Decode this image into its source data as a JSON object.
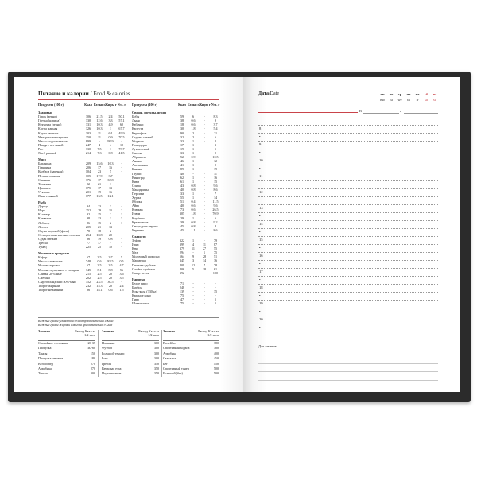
{
  "left_page": {
    "title": "Питание и калории",
    "title_en": "/ Food & calories",
    "columns": [
      "Продукты (100 г)",
      "Ккал",
      "Белки г",
      "Жиры г",
      "Угл. г"
    ],
    "left_sections": [
      {
        "name": "Злаковые",
        "rows": [
          [
            "Горох (зерно)",
            "306",
            "21.5",
            "2.4",
            "50.1"
          ],
          [
            "Гречка (ядрица)",
            "330",
            "12.6",
            "3.3",
            "57.1"
          ],
          [
            "Кукуруза (зерно)",
            "331",
            "10.3",
            "4.9",
            "60"
          ],
          [
            "Крупа манная",
            "326",
            "10.3",
            "1",
            "67.7"
          ],
          [
            "Крупа овсяная",
            "303",
            "11",
            "6.1",
            "49.9"
          ],
          [
            "Макаронные изделия",
            "350",
            "11",
            "0.9",
            "70.5"
          ],
          [
            "Масло подсолнечное",
            "899",
            "-",
            "99.9",
            "-"
          ],
          [
            "Пицца с ветчиной",
            "247",
            "4",
            "4",
            "12"
          ],
          [
            "Рис",
            "330",
            "7.5",
            "1",
            "73.7"
          ],
          [
            "Хлеб ржаной",
            "214",
            "7.3",
            "0.8",
            "41.5"
          ]
        ]
      },
      {
        "name": "Мясо",
        "rows": [
          [
            "Баранина",
            "209",
            "15.6",
            "16.3",
            "-"
          ],
          [
            "Говядина",
            "206",
            "17",
            "16",
            "-"
          ],
          [
            "Колбаса (вареная)",
            "104",
            "23",
            "5",
            "-"
          ],
          [
            "Печень говяжья",
            "105",
            "17.9",
            "3.7",
            "-"
          ],
          [
            "Свинина",
            "376",
            "17",
            "33.8",
            "-"
          ],
          [
            "Телятина",
            "92",
            "21",
            "1",
            "-"
          ],
          [
            "Цыплята",
            "175",
            "17",
            "13",
            "-"
          ],
          [
            "Утятина",
            "201",
            "19",
            "16",
            "-"
          ],
          [
            "Язык говяжий",
            "177",
            "13.5",
            "12.1",
            "-"
          ]
        ]
      },
      {
        "name": "Рыба",
        "rows": [
          [
            "Дорадо",
            "94",
            "23",
            "3",
            "-"
          ],
          [
            "Икра",
            "252",
            "29",
            "15",
            "2"
          ],
          [
            "Кальмар",
            "92",
            "15",
            "2",
            "1"
          ],
          [
            "Креветки",
            "98",
            "13",
            "1",
            "3"
          ],
          [
            "Лобстер",
            "86",
            "15",
            "2",
            "1"
          ],
          [
            "Лосось",
            "205",
            "21",
            "13",
            "-"
          ],
          [
            "Окунь морской (филе)",
            "78",
            "18",
            "2",
            "-"
          ],
          [
            "Сельдь атлантическая соленая",
            "254",
            "18.8",
            "20",
            "-"
          ],
          [
            "Судак свежий",
            "86",
            "19",
            "0.8",
            "-"
          ],
          [
            "Треска",
            "77",
            "17",
            "-",
            "-"
          ],
          [
            "Тунец",
            "225",
            "25",
            "10",
            "-"
          ]
        ]
      },
      {
        "name": "Молочные продукты",
        "rows": [
          [
            "Кефир",
            "67",
            "3.5",
            "3.7",
            "5"
          ],
          [
            "Масло сливочное",
            "748",
            "0.6",
            "82.5",
            "0.5"
          ],
          [
            "Молоко коровье",
            "67",
            "3.5",
            "3.5",
            "4.7"
          ],
          [
            "Молоко сгущенное с сахаром",
            "345",
            "8.1",
            "8.8",
            "56"
          ],
          [
            "Сливки 20%-ные",
            "215",
            "2.5",
            "20",
            "3.6"
          ],
          [
            "Сметана",
            "202",
            "2.5",
            "20",
            "3.5"
          ],
          [
            "Сыр голландский 50%-ный",
            "352",
            "23.5",
            "30.5",
            "-"
          ],
          [
            "Творог жирный",
            "232",
            "15.3",
            "20",
            "2.4"
          ],
          [
            "Творог нежирный",
            "86",
            "18.1",
            "0.6",
            "1.5"
          ]
        ]
      }
    ],
    "right_sections": [
      {
        "name": "Овощи, фрукты, ягоды",
        "rows": [
          [
            "Бобы",
            "59",
            "6",
            "-",
            "8.3"
          ],
          [
            "Дыня",
            "38",
            "0.6",
            "-",
            "9"
          ],
          [
            "Кабачки",
            "18",
            "0.6",
            "-",
            "3.7"
          ],
          [
            "Капуста",
            "30",
            "1.8",
            "-",
            "5.4"
          ],
          [
            "Картофель",
            "90",
            "2",
            "-",
            "21"
          ],
          [
            "Огурец свежий",
            "32",
            "2",
            "-",
            "6"
          ],
          [
            "Морковь",
            "33",
            "1",
            "-",
            "2"
          ],
          [
            "Помидоры",
            "17",
            "1",
            "-",
            "3"
          ],
          [
            "Лук зеленый",
            "19",
            "1",
            "-",
            "1"
          ],
          [
            "Свекла",
            "33",
            "1",
            "-",
            "9"
          ],
          [
            "Абрикосы",
            "52",
            "0.9",
            "-",
            "10.5"
          ],
          [
            "Ананас",
            "46",
            "1",
            "-",
            "12"
          ],
          [
            "Апельсины",
            "41",
            "1",
            "-",
            "9"
          ],
          [
            "Бананы",
            "89",
            "1",
            "-",
            "19"
          ],
          [
            "Груши",
            "40",
            "-",
            "-",
            "11"
          ],
          [
            "Виноград",
            "62",
            "1",
            "-",
            "16"
          ],
          [
            "Киви",
            "61",
            "1",
            "-",
            "15"
          ],
          [
            "Слива",
            "43",
            "0.8",
            "-",
            "9.6"
          ],
          [
            "Мандарины",
            "40",
            "0.8",
            "-",
            "8.6"
          ],
          [
            "Персики",
            "33",
            "1",
            "-",
            "7"
          ],
          [
            "Хурма",
            "55",
            "1",
            "-",
            "14"
          ],
          [
            "Яблоки",
            "51",
            "0.4",
            "-",
            "11.5"
          ],
          [
            "Айва",
            "40",
            "0.6",
            "-",
            "9.6"
          ],
          [
            "Клюква",
            "73",
            "0.6",
            "-",
            "26.5"
          ],
          [
            "Изюм",
            "305",
            "1.8",
            "-",
            "70.9"
          ],
          [
            "Клубника",
            "29",
            "1",
            "-",
            "6"
          ],
          [
            "Крыжовник",
            "39",
            "0.8",
            "-",
            "9.2"
          ],
          [
            "Смородина черная",
            "45",
            "0.8",
            "-",
            "8"
          ],
          [
            "Черника",
            "45",
            "1.1",
            "-",
            "8.6"
          ]
        ]
      },
      {
        "name": "Сладости",
        "rows": [
          [
            "Зефир",
            "322",
            "1",
            "-",
            "79"
          ],
          [
            "Ирис",
            "399",
            "4",
            "11",
            "87"
          ],
          [
            "Кекс",
            "379",
            "11",
            "27",
            "55"
          ],
          [
            "Мед",
            "294",
            "-",
            "1",
            "75"
          ],
          [
            "Молочный шоколад",
            "564",
            "9",
            "28",
            "51"
          ],
          [
            "Мармелад",
            "345",
            "3",
            "14",
            "36"
          ],
          [
            "Печенье сдобное",
            "409",
            "12",
            "7",
            "78"
          ],
          [
            "Слойки сдобные",
            "406",
            "5",
            "18",
            "61"
          ],
          [
            "Сахар-песок",
            "392",
            "-",
            "-",
            "100"
          ]
        ]
      },
      {
        "name": "Напитки",
        "rows": [
          [
            "Белое вино",
            "71",
            "-",
            "-",
            "-"
          ],
          [
            "Бурбон",
            "248",
            "-",
            "-",
            "-"
          ],
          [
            "Кока-кола (330мл)",
            "139",
            "-",
            "-",
            "35"
          ],
          [
            "Красное вино",
            "75",
            "-",
            "-",
            "-"
          ],
          [
            "Пиво",
            "47",
            "-",
            "-",
            "5"
          ],
          [
            "Шампанское",
            "75",
            "-",
            "-",
            "5"
          ]
        ]
      }
    ],
    "notes": [
      "Каждый грамм углеводов и белков приблизительно 4 Ккал",
      "Каждый грамм жиров и алкоголя приблизительно 9 Ккал"
    ],
    "activity_header": "Занятие",
    "activity_unit": "Расход Ккал за 1/2 часа",
    "activity_columns": [
      [
        [
          "Спокойное состояние",
          "20-35"
        ],
        [
          "Прогулка",
          "40-60"
        ],
        [
          "Танцы",
          "150"
        ],
        [
          "Прогулка пешком",
          "180"
        ],
        [
          "Велосипед",
          "270"
        ],
        [
          "Аэробика",
          "270"
        ],
        [
          "Теннис",
          "300"
        ]
      ],
      [
        [
          "Плавание",
          "300"
        ],
        [
          "Футбол",
          "300"
        ],
        [
          "Большой теннис",
          "300"
        ],
        [
          "Бокс",
          "300"
        ],
        [
          "Гребля",
          "350"
        ],
        [
          "Верховая езда",
          "350"
        ],
        [
          "Подтягивание",
          "350"
        ]
      ],
      [
        [
          "Волейбол",
          "380"
        ],
        [
          "Спортивная ходьба",
          "380"
        ],
        [
          "Аэробика",
          "400"
        ],
        [
          "Скакалка",
          "450"
        ],
        [
          "Бег",
          "450"
        ],
        [
          "Спортивный танец",
          "500"
        ],
        [
          "Большой (бег)",
          "500"
        ]
      ]
    ]
  },
  "right_page": {
    "date_label": "Дата",
    "date_label_en": "/Date",
    "weekdays": [
      {
        "ru": "пн",
        "en": "mo",
        "weekend": false
      },
      {
        "ru": "вт",
        "en": "tu",
        "weekend": false
      },
      {
        "ru": "ср",
        "en": "we",
        "weekend": false
      },
      {
        "ru": "чт",
        "en": "th",
        "weekend": false
      },
      {
        "ru": "пт",
        "en": "fr",
        "weekend": false
      },
      {
        "ru": "сб",
        "en": "sa",
        "weekend": true
      },
      {
        "ru": "вс",
        "en": "su",
        "weekend": true
      }
    ],
    "sunrise_label": "В",
    "sunset_label": "е",
    "hours": [
      "8",
      "9",
      "10",
      "11",
      "12",
      "13",
      "14",
      "15",
      "16",
      "17",
      "18",
      "19",
      "20"
    ],
    "half_marker": "•",
    "notes_label": "Для заметок"
  },
  "colors": {
    "accent": "#c9444a",
    "cover": "#2b2b2b"
  }
}
